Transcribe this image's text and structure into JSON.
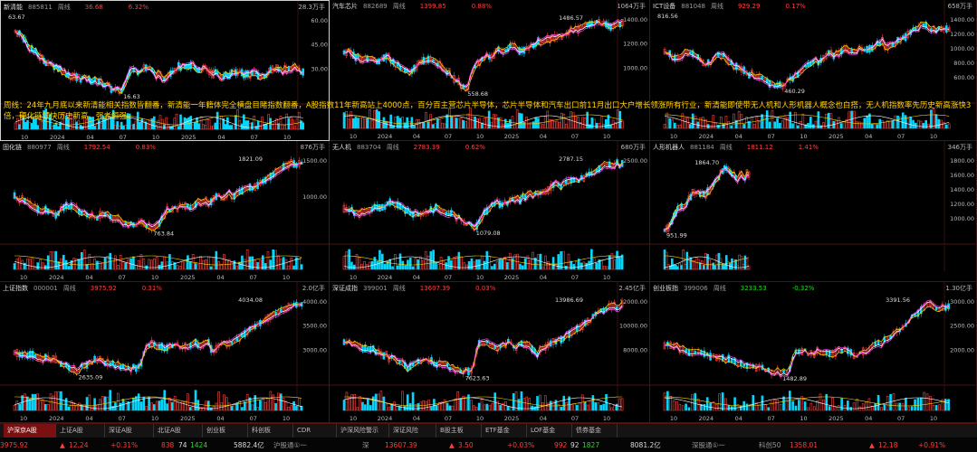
{
  "annotation": "周线：24年九月底以来新清能相关指数皆翻番，新清能一年籍体完全横盘目睹指数翻番，A股指数11年新高站上4000点，百分百主营芯片半导体，芯片半导体和汽车出口前11月出口大户增长领涨所有行业，新清能即使带无人机和人形机器人概念也白搭，无人机指数率先历史新高涨快3倍，硬化链领快历史新高，强者恒强。",
  "panels": [
    {
      "name": "新清能",
      "code": "885811",
      "period": "周线",
      "price": "36.68",
      "change": "6.32%",
      "vol": "28.3万手",
      "price_neg": false,
      "change_neg": false,
      "ticks": [
        "60.00",
        "45.00",
        "30.00"
      ],
      "high_label": "",
      "low_label": "16.63",
      "hi_left_label": "63.67",
      "dates": [
        "10",
        "2024",
        "04",
        "07",
        "10",
        "2025",
        "04",
        "07",
        "10"
      ],
      "chart_data": {
        "type": "candlestick",
        "trend": [
          0.86,
          0.83,
          0.78,
          0.66,
          0.62,
          0.57,
          0.52,
          0.47,
          0.43,
          0.4,
          0.38,
          0.35,
          0.3,
          0.27,
          0.25,
          0.24,
          0.22,
          0.23,
          0.21,
          0.19,
          0.2,
          0.16,
          0.14,
          0.11,
          0.06,
          0.07,
          0.05,
          0.22,
          0.34,
          0.33,
          0.32,
          0.36,
          0.37,
          0.34,
          0.28,
          0.26,
          0.22,
          0.27,
          0.32,
          0.35,
          0.38,
          0.37,
          0.36,
          0.41,
          0.35,
          0.34,
          0.36,
          0.32,
          0.3,
          0.29,
          0.25,
          0.27,
          0.26,
          0.29,
          0.31,
          0.3,
          0.27,
          0.29,
          0.3,
          0.26,
          0.24,
          0.28,
          0.31,
          0.36,
          0.36,
          0.33,
          0.35,
          0.36,
          0.38,
          0.33,
          0.3
        ]
      }
    },
    {
      "name": "汽车芯片",
      "code": "882689",
      "period": "周线",
      "price": "1399.85",
      "change": "0.88%",
      "vol": "1064万手",
      "price_neg": false,
      "change_neg": false,
      "ticks": [
        "1400.00",
        "1200.00",
        "1000.00"
      ],
      "high_label": "1486.57",
      "low_label": "558.68",
      "dates": [
        "10",
        "2024",
        "04",
        "07",
        "10",
        "2025",
        "04",
        "07",
        "10"
      ],
      "chart_data": {
        "type": "candlestick",
        "trend": [
          0.55,
          0.58,
          0.53,
          0.49,
          0.47,
          0.5,
          0.46,
          0.44,
          0.48,
          0.51,
          0.45,
          0.4,
          0.34,
          0.31,
          0.3,
          0.35,
          0.42,
          0.46,
          0.49,
          0.44,
          0.4,
          0.35,
          0.3,
          0.24,
          0.18,
          0.1,
          0.07,
          0.24,
          0.38,
          0.44,
          0.52,
          0.5,
          0.55,
          0.6,
          0.56,
          0.62,
          0.66,
          0.6,
          0.58,
          0.62,
          0.66,
          0.7,
          0.68,
          0.72,
          0.74,
          0.79,
          0.78,
          0.81,
          0.85,
          0.89,
          0.88,
          0.93,
          0.96,
          0.94,
          0.97,
          0.95,
          0.93,
          0.92,
          0.95,
          0.96
        ]
      }
    },
    {
      "name": "ICT设备",
      "code": "881048",
      "period": "周线",
      "price": "929.29",
      "change": "0.17%",
      "vol": "658万手",
      "price_neg": false,
      "change_neg": false,
      "ticks": [
        "1400.00",
        "1200.00",
        "1000.00",
        "800.00",
        "600.00"
      ],
      "high_label": "",
      "low_label": "460.29",
      "hi_left_label": "816.56",
      "dates": [
        "10",
        "2024",
        "04",
        "07",
        "10",
        "2025",
        "04",
        "07",
        "10"
      ],
      "chart_data": {
        "type": "candlestick",
        "trend": [
          0.55,
          0.52,
          0.48,
          0.5,
          0.55,
          0.58,
          0.52,
          0.45,
          0.4,
          0.43,
          0.5,
          0.53,
          0.46,
          0.4,
          0.36,
          0.32,
          0.28,
          0.26,
          0.23,
          0.2,
          0.16,
          0.12,
          0.1,
          0.13,
          0.18,
          0.22,
          0.28,
          0.34,
          0.4,
          0.46,
          0.44,
          0.49,
          0.56,
          0.52,
          0.57,
          0.6,
          0.55,
          0.58,
          0.63,
          0.59,
          0.62,
          0.66,
          0.7,
          0.64,
          0.67,
          0.7,
          0.74,
          0.8,
          0.86,
          0.9,
          0.94,
          0.92,
          0.86,
          0.88,
          0.9,
          0.87
        ]
      }
    },
    {
      "name": "固化链",
      "code": "880977",
      "period": "周线",
      "price": "1792.54",
      "change": "0.83%",
      "vol": "876万手",
      "price_neg": false,
      "change_neg": false,
      "ticks": [
        "1500.00",
        "1000.00"
      ],
      "high_label": "1821.09",
      "low_label": "763.84",
      "dates": [
        "10",
        "2024",
        "04",
        "07",
        "10",
        "2025",
        "04",
        "07",
        "10"
      ],
      "chart_data": {
        "type": "candlestick",
        "trend": [
          0.55,
          0.48,
          0.44,
          0.4,
          0.36,
          0.34,
          0.32,
          0.3,
          0.28,
          0.34,
          0.4,
          0.37,
          0.35,
          0.31,
          0.28,
          0.26,
          0.24,
          0.3,
          0.28,
          0.24,
          0.2,
          0.16,
          0.13,
          0.15,
          0.17,
          0.15,
          0.12,
          0.1,
          0.18,
          0.32,
          0.36,
          0.35,
          0.42,
          0.4,
          0.38,
          0.43,
          0.46,
          0.44,
          0.48,
          0.52,
          0.5,
          0.56,
          0.54,
          0.58,
          0.6,
          0.62,
          0.66,
          0.7,
          0.74,
          0.78,
          0.83,
          0.88,
          0.92,
          0.96,
          0.94,
          0.97
        ]
      }
    },
    {
      "name": "无人机",
      "code": "883704",
      "period": "周线",
      "price": "2783.39",
      "change": "0.62%",
      "vol": "680万手",
      "price_neg": false,
      "change_neg": false,
      "ticks": [
        "2500.00"
      ],
      "high_label": "2787.15",
      "low_label": "1079.08",
      "dates": [
        "10",
        "2024",
        "04",
        "07",
        "10",
        "2025",
        "04",
        "07",
        "10"
      ],
      "chart_data": {
        "type": "candlestick",
        "trend": [
          0.36,
          0.34,
          0.32,
          0.3,
          0.32,
          0.35,
          0.38,
          0.34,
          0.4,
          0.44,
          0.42,
          0.38,
          0.33,
          0.3,
          0.28,
          0.26,
          0.3,
          0.34,
          0.36,
          0.33,
          0.3,
          0.28,
          0.24,
          0.2,
          0.16,
          0.1,
          0.14,
          0.28,
          0.36,
          0.4,
          0.44,
          0.42,
          0.46,
          0.5,
          0.48,
          0.52,
          0.56,
          0.54,
          0.58,
          0.6,
          0.64,
          0.68,
          0.66,
          0.7,
          0.74,
          0.72,
          0.76,
          0.8,
          0.84,
          0.88,
          0.92,
          0.95,
          0.93,
          0.96,
          0.94
        ]
      }
    },
    {
      "name": "人形机器人",
      "code": "881184",
      "period": "周线",
      "price": "1811.12",
      "change": "1.41%",
      "vol": "346万手",
      "price_neg": false,
      "change_neg": false,
      "ticks": [
        "1800.00",
        "1600.00",
        "1400.00",
        "1200.00",
        "1000.00"
      ],
      "high_label": "1864.70",
      "low_label": "951.99",
      "dates": [],
      "chart_data": {
        "type": "candlestick",
        "trend": [
          0.06,
          0.1,
          0.2,
          0.3,
          0.4,
          0.38,
          0.46,
          0.54,
          0.6,
          0.58,
          0.52,
          0.56,
          0.62,
          0.7,
          0.78,
          0.86,
          0.92,
          0.88,
          0.8,
          0.76,
          0.82,
          0.78,
          0.84
        ]
      }
    },
    {
      "name": "上证指数",
      "code": "000001",
      "period": "周线",
      "price": "3975.92",
      "change": "0.31%",
      "vol": "2.0亿手",
      "price_neg": false,
      "change_neg": false,
      "ticks": [
        "4000.00",
        "3500.00",
        "3000.00"
      ],
      "high_label": "4034.08",
      "low_label": "2635.09",
      "dates": [
        "10",
        "2024",
        "04",
        "07",
        "10",
        "2025",
        "04",
        "07",
        "10"
      ],
      "chart_data": {
        "type": "candlestick",
        "trend": [
          0.3,
          0.28,
          0.3,
          0.27,
          0.26,
          0.25,
          0.24,
          0.22,
          0.2,
          0.18,
          0.14,
          0.1,
          0.06,
          0.14,
          0.18,
          0.2,
          0.22,
          0.2,
          0.18,
          0.16,
          0.14,
          0.12,
          0.1,
          0.12,
          0.14,
          0.36,
          0.44,
          0.4,
          0.38,
          0.36,
          0.4,
          0.42,
          0.38,
          0.4,
          0.43,
          0.44,
          0.42,
          0.46,
          0.34,
          0.4,
          0.44,
          0.46,
          0.48,
          0.52,
          0.56,
          0.62,
          0.66,
          0.7,
          0.74,
          0.8,
          0.84,
          0.88,
          0.92,
          0.96,
          0.94,
          0.97
        ]
      }
    },
    {
      "name": "深证成指",
      "code": "399001",
      "period": "周线",
      "price": "13607.39",
      "change": "0.03%",
      "vol": "2.45亿手",
      "price_neg": false,
      "change_neg": false,
      "ticks": [
        "12000.00",
        "10000.00",
        "8000.00"
      ],
      "high_label": "13986.69",
      "low_label": "7623.63",
      "dates": [
        "10",
        "2024",
        "04",
        "07",
        "10",
        "2025",
        "04",
        "07",
        "10"
      ],
      "chart_data": {
        "type": "candlestick",
        "trend": [
          0.48,
          0.45,
          0.43,
          0.4,
          0.38,
          0.36,
          0.33,
          0.3,
          0.28,
          0.24,
          0.2,
          0.16,
          0.1,
          0.14,
          0.2,
          0.24,
          0.22,
          0.18,
          0.16,
          0.14,
          0.12,
          0.1,
          0.06,
          0.08,
          0.1,
          0.4,
          0.48,
          0.44,
          0.4,
          0.38,
          0.42,
          0.46,
          0.4,
          0.42,
          0.45,
          0.4,
          0.3,
          0.36,
          0.4,
          0.44,
          0.48,
          0.52,
          0.56,
          0.6,
          0.66,
          0.7,
          0.76,
          0.82,
          0.88,
          0.92,
          0.96,
          0.93,
          0.95
        ]
      }
    },
    {
      "name": "创业板指",
      "code": "399006",
      "period": "周线",
      "price": "3233.53",
      "change": "-0.32%",
      "vol": "1.30亿手",
      "price_neg": true,
      "change_neg": true,
      "ticks": [
        "3000.00",
        "2500.00",
        "2000.00"
      ],
      "high_label": "3391.56",
      "low_label": "1482.89",
      "dates": [
        "10",
        "2024",
        "04",
        "07",
        "10",
        "2025",
        "04",
        "07",
        "10"
      ],
      "chart_data": {
        "type": "candlestick",
        "trend": [
          0.42,
          0.44,
          0.4,
          0.36,
          0.34,
          0.32,
          0.3,
          0.28,
          0.26,
          0.24,
          0.22,
          0.2,
          0.18,
          0.16,
          0.14,
          0.12,
          0.1,
          0.08,
          0.06,
          0.05,
          0.04,
          0.3,
          0.36,
          0.32,
          0.3,
          0.34,
          0.32,
          0.3,
          0.34,
          0.36,
          0.3,
          0.28,
          0.32,
          0.36,
          0.4,
          0.44,
          0.5,
          0.56,
          0.62,
          0.7,
          0.78,
          0.86,
          0.92,
          0.96,
          0.9,
          0.92,
          0.94
        ]
      }
    }
  ],
  "tabs": [
    "沪深京A股",
    "上证A股",
    "深证A股",
    "北证A股",
    "创业板",
    "科创板",
    "CDR",
    "沪深风险警示",
    "深证风险",
    "B股主板",
    "ETF基金",
    "LOF基金",
    "债券基金"
  ],
  "status": {
    "sh_val": "3975.92",
    "sh_chg": "12.24",
    "sh_pct": "+0.31%",
    "sh_up": "838",
    "sh_mid": "74",
    "sh_dn": "1424",
    "sh_amt": "5882.4亿",
    "sh_conn": "沪股通①一",
    "sz_label": "深",
    "sz_val": "13607.39",
    "sz_chg": "3.50",
    "sz_pct": "+0.03%",
    "sz_up": "992",
    "sz_mid": "92",
    "sz_dn": "1827",
    "sz_amt": "8081.2亿",
    "sz_conn": "深股通①一",
    "cy_label": "科创50",
    "cy_val": "1358.01",
    "cy_chg": "12.18",
    "cy_pct": "+0.91%"
  },
  "colors": {
    "up": "#ff4040",
    "down": "#00d8ff",
    "bg": "#000000",
    "accent": "#ffd700"
  }
}
